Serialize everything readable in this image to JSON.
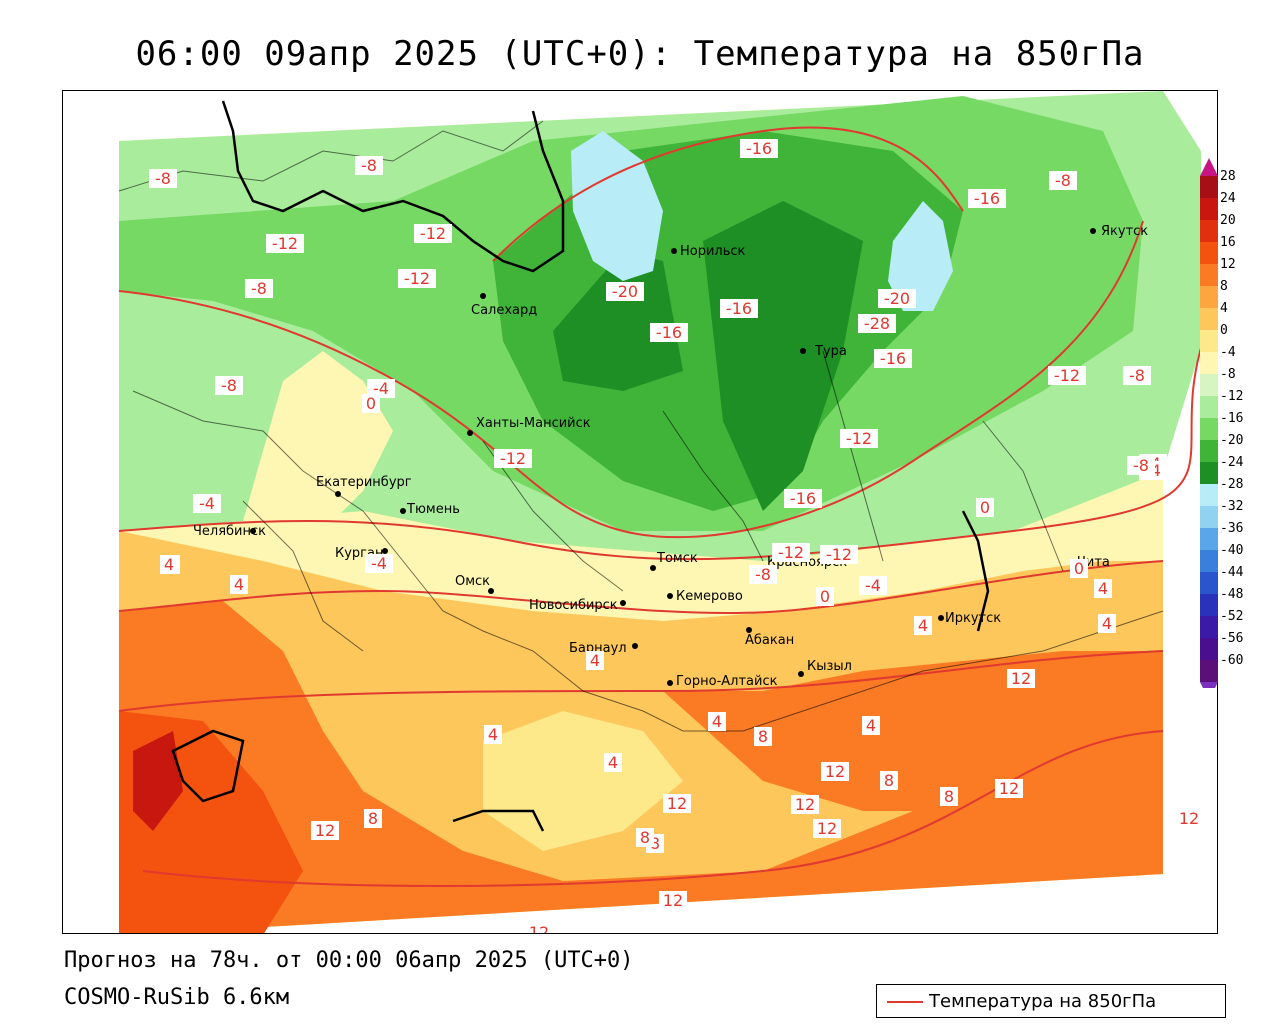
{
  "title": "06:00 09апр 2025 (UTC+0): Температура на 850гПа",
  "forecast_info": "Прогноз на 78ч. от 00:00 06апр 2025 (UTC+0)",
  "model_info": "COSMO-RuSib 6.6км",
  "legend": {
    "line_label": "Температура на 850гПа",
    "line_color": "#e0392f"
  },
  "colorbar": {
    "ticks": [
      "28",
      "24",
      "20",
      "16",
      "12",
      "8",
      "4",
      "0",
      "-4",
      "-8",
      "-12",
      "-16",
      "-20",
      "-24",
      "-28",
      "-32",
      "-36",
      "-40",
      "-44",
      "-48",
      "-52",
      "-56",
      "-60"
    ],
    "colors": [
      "#a50f15",
      "#c8170f",
      "#e0300e",
      "#f4520f",
      "#fb7a24",
      "#fda640",
      "#fdc75c",
      "#fde88a",
      "#fef7b3",
      "#d7f5c0",
      "#a9ec9c",
      "#76d964",
      "#3fb438",
      "#1e8f24",
      "#b8ecf7",
      "#90d2f0",
      "#5aa6e8",
      "#3a7fdc",
      "#2a55cc",
      "#2a32bc",
      "#3b1aa8",
      "#4a0f8e",
      "#5b0f78"
    ]
  },
  "cities": [
    {
      "name": "Салехард"
    },
    {
      "name": "Норильск"
    },
    {
      "name": "Тура"
    },
    {
      "name": "Якутск"
    },
    {
      "name": "Ханты-Мансийск"
    },
    {
      "name": "Екатеринбург"
    },
    {
      "name": "Тюмень"
    },
    {
      "name": "Челябинск"
    },
    {
      "name": "Курган"
    },
    {
      "name": "Омск"
    },
    {
      "name": "Новосибирск"
    },
    {
      "name": "Томск"
    },
    {
      "name": "Кемерово"
    },
    {
      "name": "Красноярск"
    },
    {
      "name": "Барнаул"
    },
    {
      "name": "Абакан"
    },
    {
      "name": "Горно-Алтайск"
    },
    {
      "name": "Кызыл"
    },
    {
      "name": "Иркутск"
    },
    {
      "name": "Чита"
    }
  ],
  "isotherm_labels": [
    "-8",
    "-8",
    "-12",
    "-12",
    "-12",
    "-8",
    "-8",
    "-4",
    "0",
    "-12",
    "-16",
    "-20",
    "-16",
    "-16",
    "-16",
    "-20",
    "-28",
    "-16",
    "-8",
    "-12",
    "-8",
    "-16",
    "-12",
    "-12",
    "-8",
    "-4",
    "-4",
    "0",
    "4",
    "0",
    "0",
    "4",
    "4",
    "4",
    "4",
    "4",
    "8",
    "4",
    "8",
    "12",
    "8",
    "12",
    "12",
    "12",
    "8",
    "12",
    "8",
    "8",
    "12",
    "12",
    "12",
    "12",
    "12",
    "-4",
    "-4",
    "-4",
    "-8",
    "-12",
    "4",
    "4",
    "4",
    "4"
  ]
}
